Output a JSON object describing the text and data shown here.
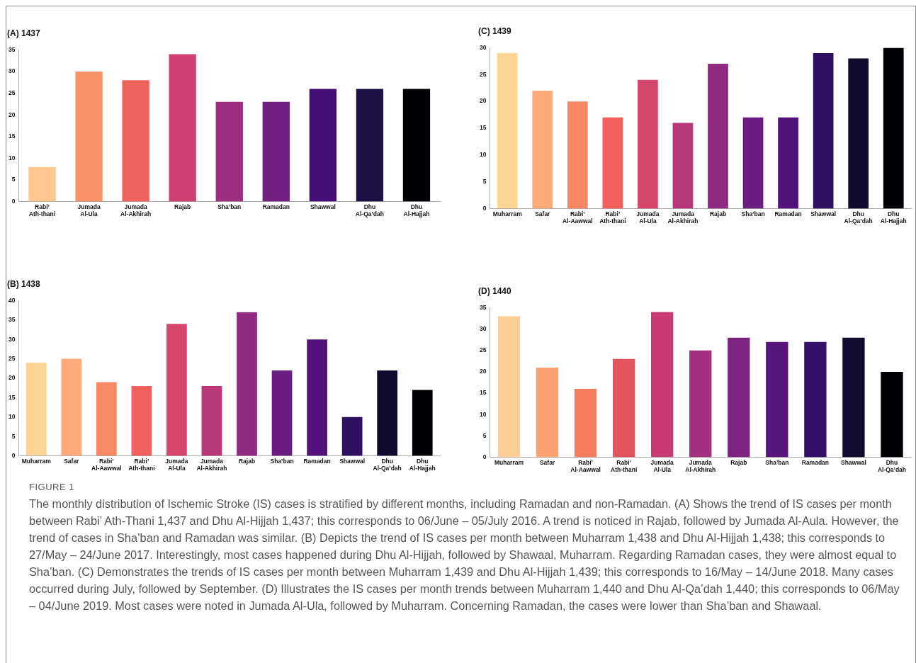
{
  "chart_data": [
    {
      "type": "bar",
      "title": "(A) 1437",
      "categories": [
        "Rabi’ Ath-thani",
        "Jumada Al-Ula",
        "Jumada Al-Akhirah",
        "Rajab",
        "Sha’ban",
        "Ramadan",
        "Shawwal",
        "Dhu Al-Qa’dah",
        "Dhu Al-Hajjah"
      ],
      "values": [
        8,
        30,
        28,
        34,
        23,
        23,
        26,
        26,
        26
      ],
      "colors": [
        "#fdc78d",
        "#fc9065",
        "#f0605d",
        "#cd4071",
        "#9c2e7f",
        "#721f81",
        "#440f76",
        "#1c1044",
        "#000004"
      ],
      "ylim": [
        0,
        35
      ],
      "yticks": [
        0,
        5,
        10,
        15,
        20,
        25,
        30,
        35
      ]
    },
    {
      "type": "bar",
      "title": "(C) 1439",
      "categories": [
        "Muharram",
        "Safar",
        "Rabi’ Al-Aawwal",
        "Rabi’ Ath-thani",
        "Jumada Al-Ula",
        "Jumada Al-Akhirah",
        "Rajab",
        "Sha’ban",
        "Ramadan",
        "Shawwal",
        "Dhu Al-Qa’dah",
        "Dhu Al-Hajjah"
      ],
      "values": [
        29,
        22,
        20,
        17,
        24,
        16,
        27,
        17,
        17,
        29,
        28,
        30
      ],
      "colors": [
        "#fcd595",
        "#fdab78",
        "#f98865",
        "#f1605d",
        "#d6456c",
        "#b73779",
        "#912b81",
        "#6c1d81",
        "#51127c",
        "#2d1160",
        "#0f0a2e",
        "#000004"
      ],
      "ylim": [
        0,
        30
      ],
      "yticks": [
        0,
        5,
        10,
        15,
        20,
        25,
        30
      ]
    },
    {
      "type": "bar",
      "title": "(B) 1438",
      "categories": [
        "Muharram",
        "Safar",
        "Rabi’ Al-Aawwal",
        "Rabi’ Ath-thani",
        "Jumada Al-Ula",
        "Jumada Al-Akhirah",
        "Rajab",
        "Sha’ban",
        "Ramadan",
        "Shawwal",
        "Dhu Al-Qa’dah",
        "Dhu Al-Hajjah"
      ],
      "values": [
        24,
        25,
        19,
        18,
        34,
        18,
        37,
        22,
        30,
        10,
        22,
        17
      ],
      "colors": [
        "#fcd595",
        "#fdab78",
        "#f98865",
        "#f1605d",
        "#d6456c",
        "#b73779",
        "#912b81",
        "#6c1d81",
        "#51127c",
        "#2d1160",
        "#0f0a2e",
        "#000004"
      ],
      "ylim": [
        0,
        40
      ],
      "yticks": [
        0,
        5,
        10,
        15,
        20,
        25,
        30,
        35,
        40
      ]
    },
    {
      "type": "bar",
      "title": "(D) 1440",
      "categories": [
        "Muharram",
        "Safar",
        "Rabi’ Al-Aawwal",
        "Rabi’ Ath-thani",
        "Jumada Al-Ula",
        "Jumada Al-Akhirah",
        "Rajab",
        "Sha’ban",
        "Ramadan",
        "Shawwal",
        "Dhu Al-Qa’dah"
      ],
      "values": [
        33,
        21,
        16,
        23,
        34,
        25,
        28,
        27,
        27,
        28,
        20
      ],
      "colors": [
        "#fcce91",
        "#fca272",
        "#f57c5c",
        "#e5535f",
        "#c93a72",
        "#a2307f",
        "#7d2482",
        "#58157e",
        "#340f6b",
        "#120d30",
        "#000004"
      ],
      "ylim": [
        0,
        35
      ],
      "yticks": [
        0,
        5,
        10,
        15,
        20,
        25,
        30,
        35
      ],
      "annotations": [
        "FIGURE 1",
        "The monthly distribution of Ischemic Stroke (IS) cases is stratified by different months, including Ramadan and non-Ramadan. (A) Shows the trend of IS cases per month between Rabi’ Ath-Thani 1,437 and Dhu Al-Hijjah 1,437; this corresponds to 06/June – 05/July 2016. A trend is noticed in Rajab, followed by Jumada Al-Aula. However, the trend of cases in Sha’ban and Ramadan was similar. (B) Depicts the trend of IS cases per month between Muharram 1,438 and Dhu Al-Hijjah 1,438; this corresponds to 27/May – 24/June 2017. Interestingly, most cases happened during Dhu Al-Hijjah, followed by Shawaal, Muharram. Regarding Ramadan cases, they were almost equal to Sha’ban. (C) Demonstrates the trends of IS cases per month between Muharram 1,439 and Dhu Al-Hijjah 1,439; this corresponds to 16/May – 14/June 2018. Many cases occurred during July, followed by September. (D) Illustrates the IS cases per month trends between Muharram 1,440 and Dhu Al-Qa’dah 1,440; this corresponds to 06/May – 04/June 2019. Most cases were noted in Jumada Al-Ula, followed by Muharram. Concerning Ramadan, the cases were lower than Sha’ban and Shawaal."
      ]
    }
  ]
}
